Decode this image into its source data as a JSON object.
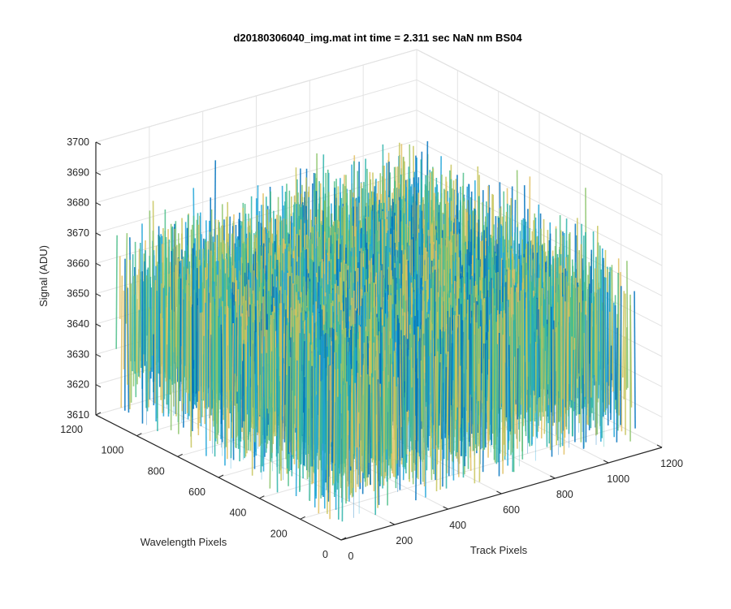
{
  "chart_data": {
    "type": "surface",
    "title": "d20180306040_img.mat int time = 2.311 sec  NaN nm BS04",
    "xlabel": "Track Pixels",
    "ylabel": "Wavelength Pixels",
    "zlabel": "Signal (ADU)",
    "xlim": [
      0,
      1200
    ],
    "ylim": [
      0,
      1200
    ],
    "zlim": [
      3610,
      3700
    ],
    "x_ticks": [
      "0",
      "200",
      "400",
      "600",
      "800",
      "1000",
      "1200"
    ],
    "y_ticks": [
      "0",
      "200",
      "400",
      "600",
      "800",
      "1000",
      "1200"
    ],
    "z_ticks": [
      "3610",
      "3620",
      "3630",
      "3640",
      "3650",
      "3660",
      "3670",
      "3680",
      "3690",
      "3700"
    ],
    "grid": true,
    "surface": {
      "x_range": [
        0,
        1100
      ],
      "y_range": [
        0,
        1100
      ],
      "z_mean": 3646,
      "z_min": 3615,
      "z_max": 3690,
      "colors": [
        "#0072BD",
        "#1FA5D8",
        "#2BB3A9",
        "#4DBE8A",
        "#8CC46B",
        "#C7C45A",
        "#E0C060"
      ]
    }
  }
}
